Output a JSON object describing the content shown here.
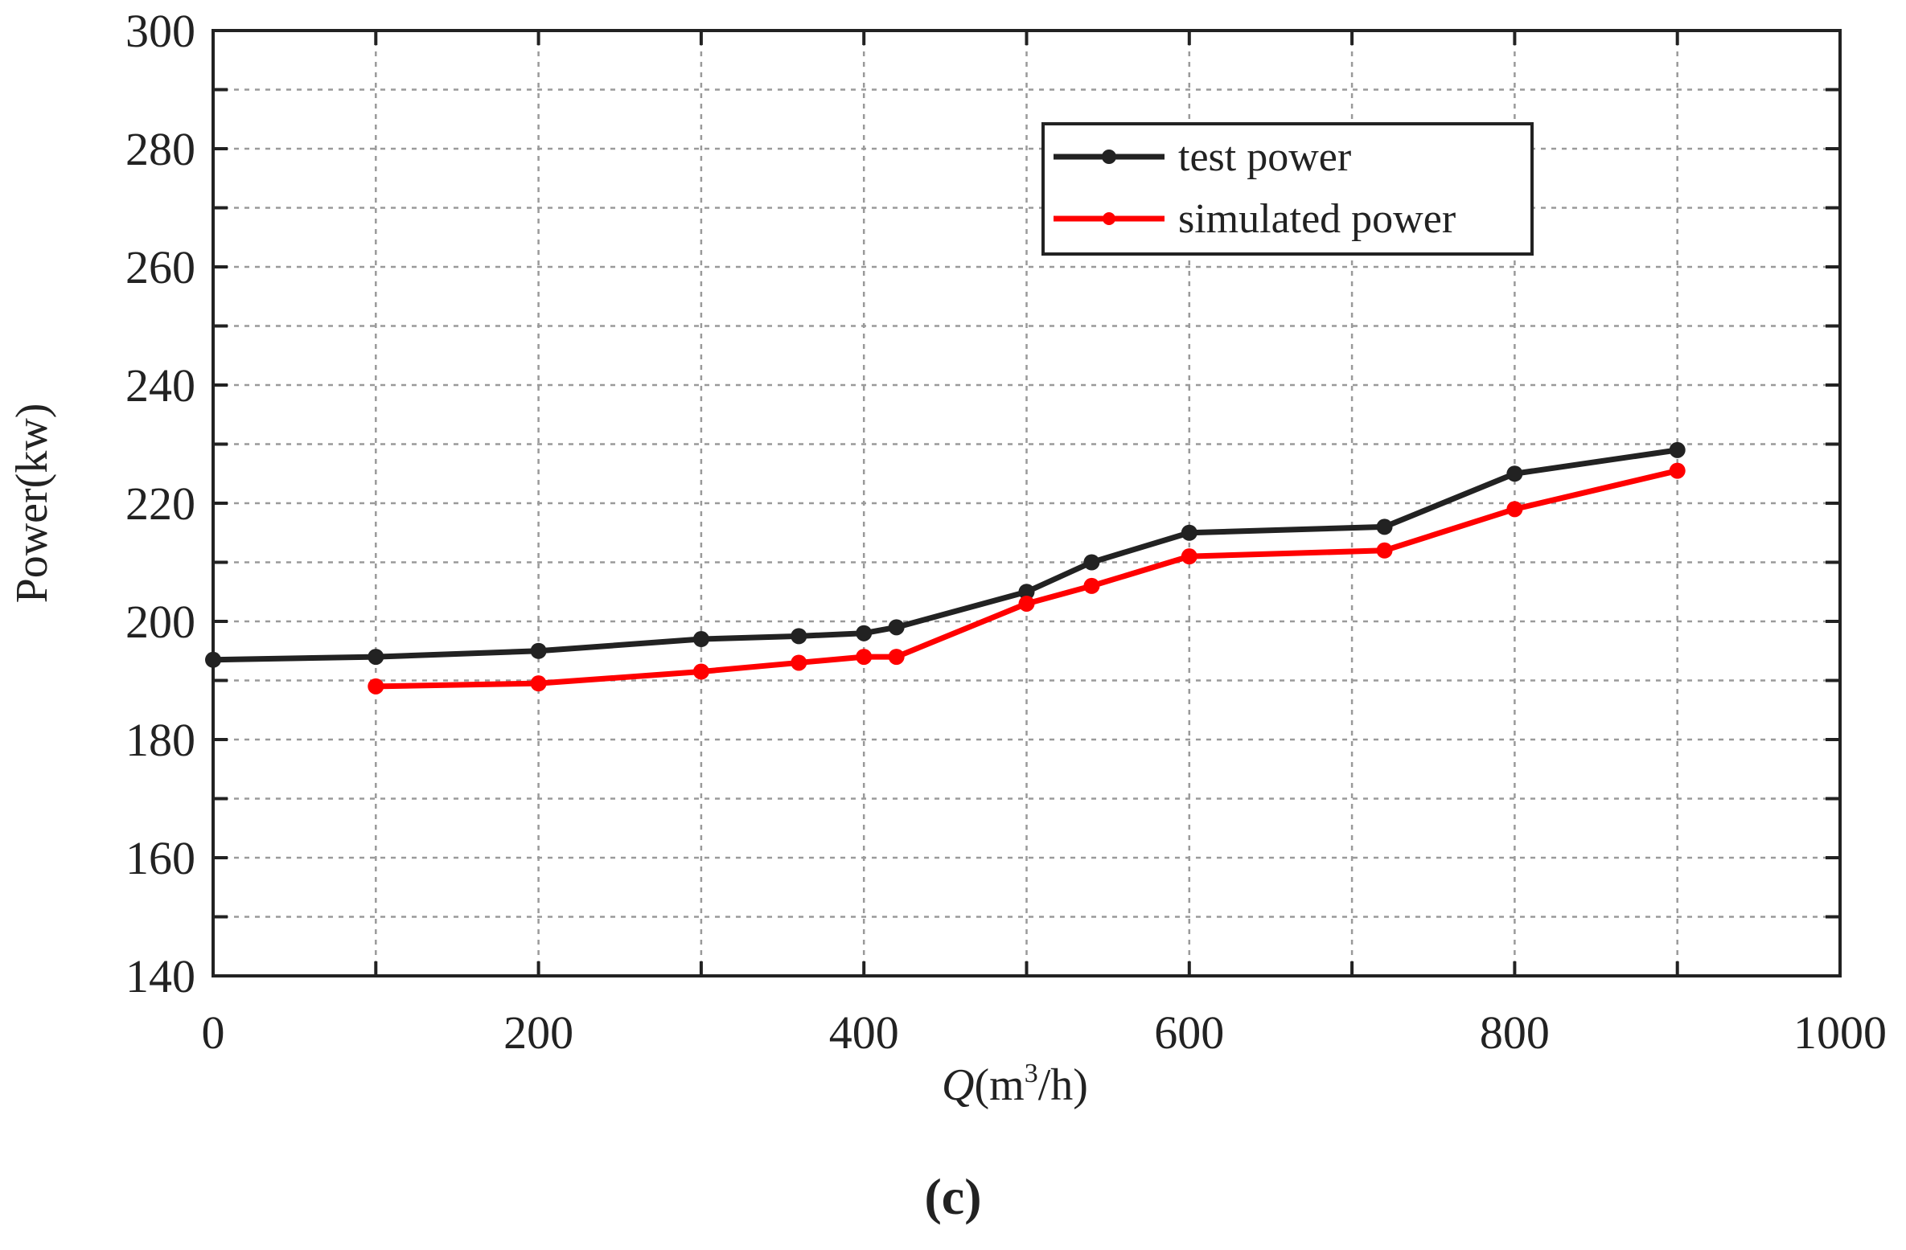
{
  "chart_data": {
    "type": "line",
    "title": "",
    "xlabel": "Q(m³/h)",
    "ylabel": "Power(kw)",
    "xlim": [
      0,
      1000
    ],
    "ylim": [
      140,
      300
    ],
    "xticks": [
      0,
      200,
      400,
      600,
      800,
      1000
    ],
    "yticks": [
      140,
      160,
      180,
      200,
      220,
      240,
      260,
      280,
      300
    ],
    "grid": true,
    "legend_position": "top-right",
    "series": [
      {
        "name": "test power",
        "color": "#222222",
        "x": [
          0,
          100,
          200,
          300,
          360,
          400,
          420,
          500,
          540,
          600,
          720,
          800,
          900
        ],
        "y": [
          193.5,
          194,
          195,
          197,
          197.5,
          198,
          199,
          205,
          210,
          215,
          216,
          225,
          229
        ]
      },
      {
        "name": "simulated power",
        "color": "#ff0000",
        "x": [
          100,
          200,
          300,
          360,
          400,
          420,
          500,
          540,
          600,
          720,
          800,
          900
        ],
        "y": [
          189,
          189.5,
          191.5,
          193,
          194,
          194,
          203,
          206,
          211,
          212,
          219,
          225.5
        ]
      }
    ]
  },
  "panel_label": "(c)"
}
